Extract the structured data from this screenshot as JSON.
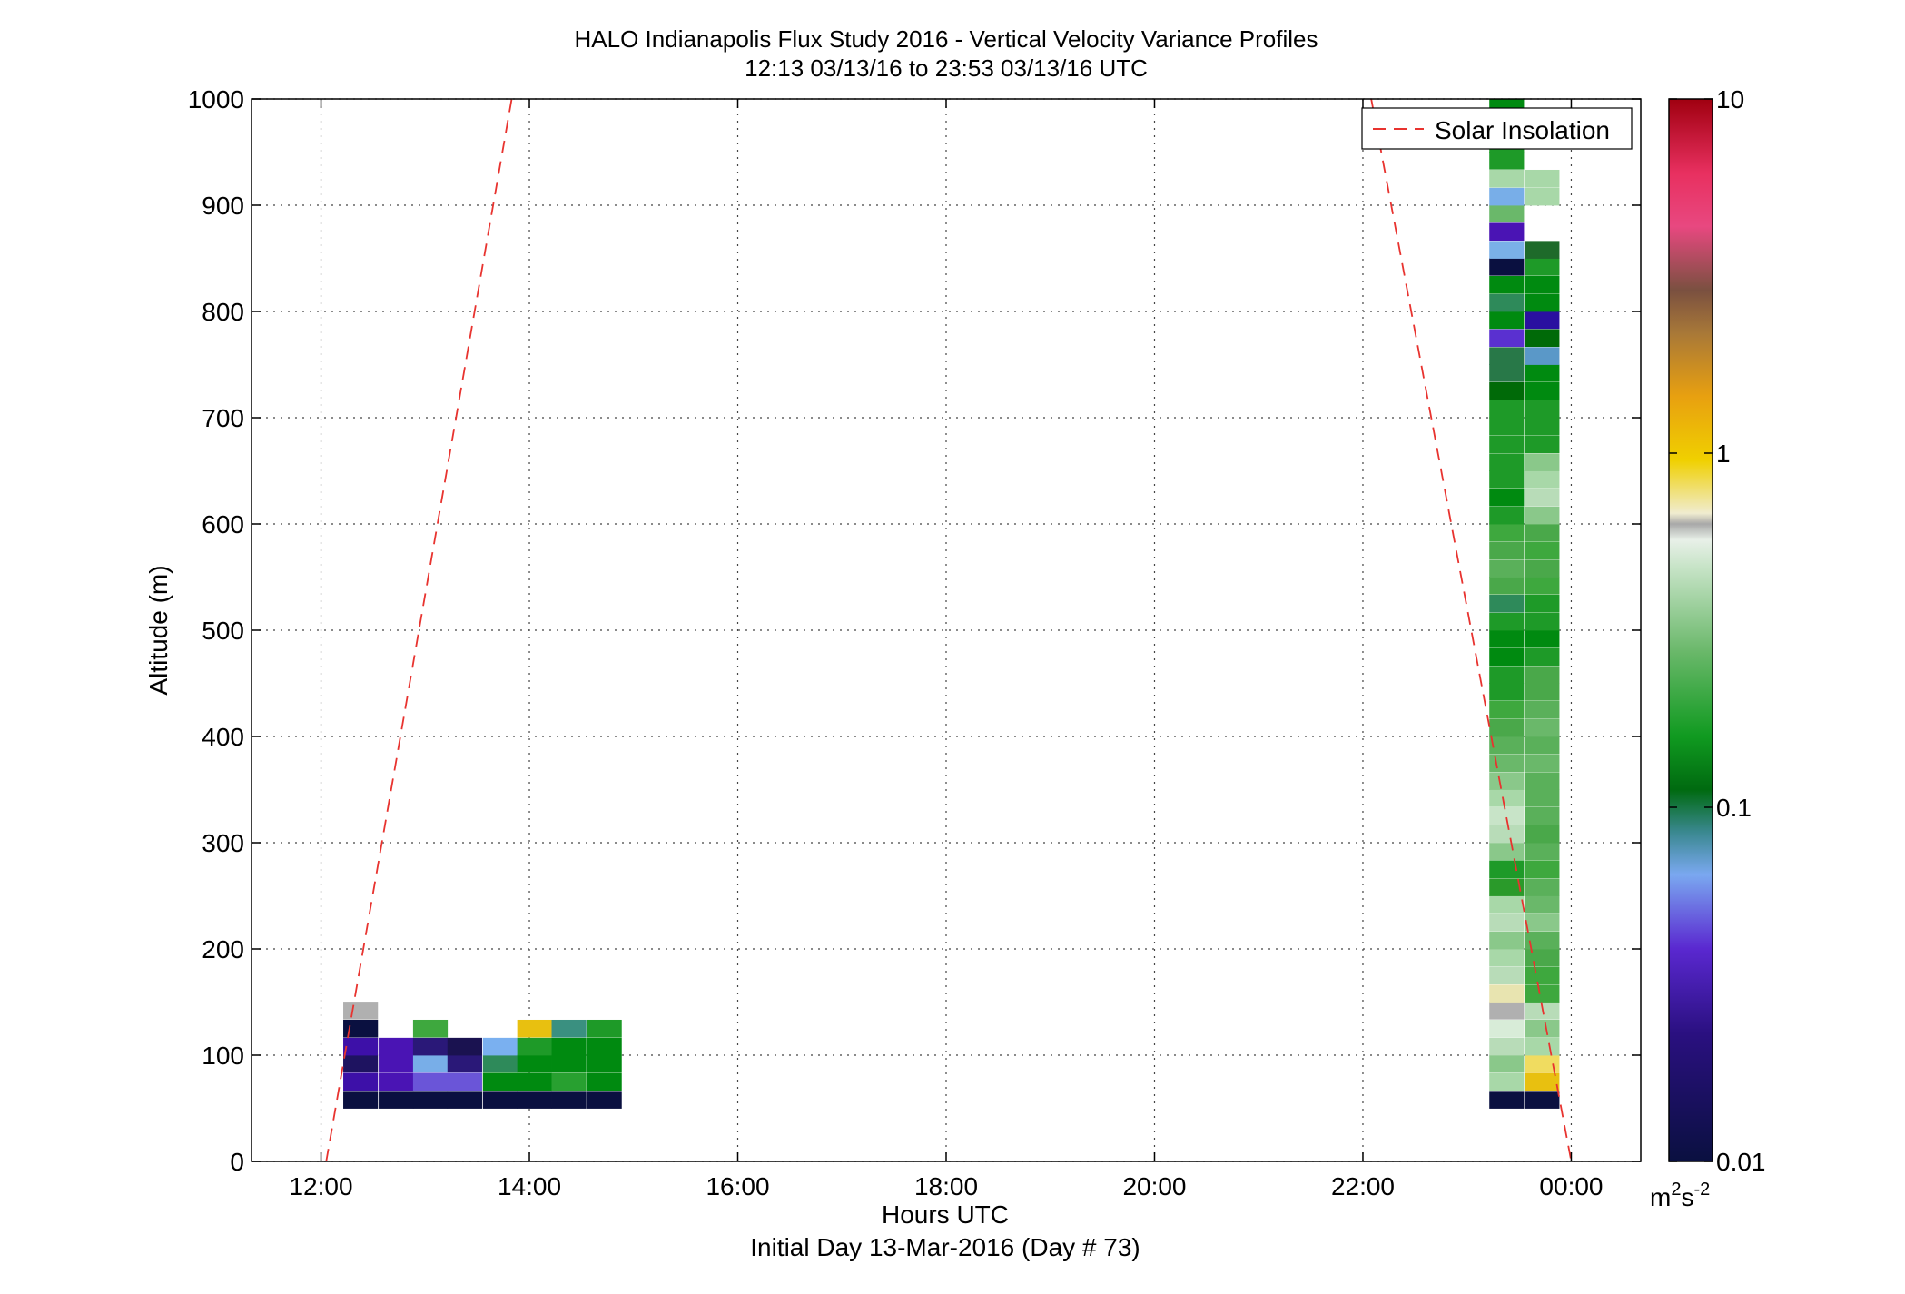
{
  "header": {
    "title": "HALO Indianapolis Flux Study 2016 - Vertical Velocity Variance Profiles",
    "subtitle": "12:13 03/13/16 to 23:53 03/13/16  UTC"
  },
  "colors": {
    "grid": "#444444",
    "insolation": "#e8332f",
    "axes": "#000000"
  },
  "chart_data": {
    "type": "heatmap",
    "xlabel": "Hours UTC",
    "xlabel2": "Initial Day 13-Mar-2016 (Day # 73)",
    "ylabel": "Altitude (m)",
    "xlim": [
      11.333,
      24.667
    ],
    "ylim": [
      0,
      1000
    ],
    "x_ticks": [
      12,
      14,
      16,
      18,
      20,
      22,
      24
    ],
    "x_tick_labels": [
      "12:00",
      "14:00",
      "16:00",
      "18:00",
      "20:00",
      "22:00",
      "00:00"
    ],
    "y_ticks": [
      0,
      100,
      200,
      300,
      400,
      500,
      600,
      700,
      800,
      900,
      1000
    ],
    "y_tick_labels": [
      "0",
      "100",
      "200",
      "300",
      "400",
      "500",
      "600",
      "700",
      "800",
      "900",
      "1000"
    ],
    "grid": true,
    "legend": {
      "placement": "top-right",
      "entries": [
        "Solar Insolation"
      ]
    },
    "colorbar": {
      "scale": "log",
      "range": [
        0.01,
        10
      ],
      "tick_values": [
        0.01,
        0.1,
        1,
        10
      ],
      "tick_labels": [
        "0.01",
        "0.1",
        "1",
        "10"
      ],
      "unit_base": "m",
      "unit_sup1": "2",
      "unit_mid": "s",
      "unit_sup2": "-2"
    },
    "solar_insolation": {
      "morning": {
        "x": [
          12.05,
          13.83
        ],
        "y": [
          0,
          1000
        ]
      },
      "evening": {
        "x": [
          22.08,
          24.0
        ],
        "y": [
          1000,
          0
        ]
      }
    },
    "cell_height_m": 16.7,
    "cell_width_h": 0.333,
    "series": [
      {
        "time": 12.38,
        "cells": [
          [
            58,
            "#0a1040"
          ],
          [
            75,
            "#3d10a8"
          ],
          [
            92,
            "#1e1360"
          ],
          [
            108,
            "#3d10a8"
          ],
          [
            125,
            "#0a1040"
          ],
          [
            142,
            "#b0b0b0"
          ]
        ]
      },
      {
        "time": 12.72,
        "cells": [
          [
            58,
            "#0a1040"
          ],
          [
            75,
            "#4a14b4"
          ],
          [
            92,
            "#4a14b4"
          ],
          [
            108,
            "#4a14b4"
          ]
        ]
      },
      {
        "time": 13.05,
        "cells": [
          [
            58,
            "#0a1040"
          ],
          [
            75,
            "#6a55d8"
          ],
          [
            92,
            "#78aee8"
          ],
          [
            108,
            "#2a1878"
          ],
          [
            125,
            "#3ea83e"
          ]
        ]
      },
      {
        "time": 13.38,
        "cells": [
          [
            58,
            "#0a1040"
          ],
          [
            75,
            "#6a55d8"
          ],
          [
            92,
            "#2a1878"
          ],
          [
            108,
            "#1a1250"
          ]
        ]
      },
      {
        "time": 13.72,
        "cells": [
          [
            58,
            "#0a1040"
          ],
          [
            75,
            "#008a10"
          ],
          [
            92,
            "#2e8a5a"
          ],
          [
            108,
            "#7ab0f0"
          ]
        ]
      },
      {
        "time": 14.05,
        "cells": [
          [
            58,
            "#0a1040"
          ],
          [
            75,
            "#008a10"
          ],
          [
            92,
            "#008a10"
          ],
          [
            108,
            "#1e9a28"
          ],
          [
            125,
            "#e8c010"
          ]
        ]
      },
      {
        "time": 14.38,
        "cells": [
          [
            58,
            "#0a1040"
          ],
          [
            75,
            "#28a030"
          ],
          [
            92,
            "#008a10"
          ],
          [
            108,
            "#008a10"
          ],
          [
            125,
            "#3a9080"
          ]
        ]
      },
      {
        "time": 14.72,
        "cells": [
          [
            58,
            "#0a1040"
          ],
          [
            75,
            "#008a10"
          ],
          [
            92,
            "#008a10"
          ],
          [
            108,
            "#008a10"
          ],
          [
            125,
            "#1e9a28"
          ]
        ]
      },
      {
        "time": 23.38,
        "cells": [
          [
            58,
            "#0a1040"
          ],
          [
            75,
            "#a8d8a8"
          ],
          [
            92,
            "#8ac88a"
          ],
          [
            108,
            "#b8dcb8"
          ],
          [
            125,
            "#d8ecd8"
          ],
          [
            142,
            "#b0b0b0"
          ],
          [
            158,
            "#e8e4b0"
          ],
          [
            175,
            "#b8dcb8"
          ],
          [
            192,
            "#a8d8a8"
          ],
          [
            208,
            "#8ac88a"
          ],
          [
            225,
            "#b8dcb8"
          ],
          [
            242,
            "#a8d8a8"
          ],
          [
            258,
            "#2a9a2a"
          ],
          [
            275,
            "#1e9a28"
          ],
          [
            292,
            "#8ac88a"
          ],
          [
            308,
            "#b8dcb8"
          ],
          [
            325,
            "#c8e4c8"
          ],
          [
            342,
            "#a8d8a8"
          ],
          [
            358,
            "#8ac88a"
          ],
          [
            375,
            "#6ab86a"
          ],
          [
            392,
            "#5ab05a"
          ],
          [
            408,
            "#4aa84a"
          ],
          [
            425,
            "#3ea83e"
          ],
          [
            442,
            "#1e9a28"
          ],
          [
            458,
            "#1e9a28"
          ],
          [
            475,
            "#008a10"
          ],
          [
            492,
            "#008a10"
          ],
          [
            508,
            "#1e9a28"
          ],
          [
            525,
            "#2e8a5a"
          ],
          [
            542,
            "#4aa84a"
          ],
          [
            558,
            "#5ab05a"
          ],
          [
            575,
            "#4aa84a"
          ],
          [
            592,
            "#3ea83e"
          ],
          [
            608,
            "#1e9a28"
          ],
          [
            625,
            "#008a10"
          ],
          [
            642,
            "#1e9a28"
          ],
          [
            658,
            "#1e9a28"
          ],
          [
            675,
            "#1e9a28"
          ],
          [
            692,
            "#1e9a28"
          ],
          [
            708,
            "#1e9a28"
          ],
          [
            725,
            "#006a08"
          ],
          [
            742,
            "#287848"
          ],
          [
            758,
            "#287848"
          ],
          [
            775,
            "#5a30d0"
          ],
          [
            792,
            "#008a10"
          ],
          [
            808,
            "#2e8a5a"
          ],
          [
            825,
            "#008a10"
          ],
          [
            842,
            "#0a1040"
          ],
          [
            858,
            "#7ab0e8"
          ],
          [
            875,
            "#4a14b4"
          ],
          [
            892,
            "#6ab86a"
          ],
          [
            908,
            "#78aee8"
          ],
          [
            925,
            "#a8d8a8"
          ],
          [
            942,
            "#1e9a28"
          ],
          [
            958,
            "#1e9a28"
          ],
          [
            975,
            "#1e9a28"
          ],
          [
            992,
            "#008a10"
          ]
        ]
      },
      {
        "time": 23.72,
        "cells": [
          [
            58,
            "#0a1040"
          ],
          [
            75,
            "#e8c010"
          ],
          [
            92,
            "#f0dc60"
          ],
          [
            108,
            "#a8d8a8"
          ],
          [
            125,
            "#8ac88a"
          ],
          [
            142,
            "#b8dcb8"
          ],
          [
            158,
            "#3ea83e"
          ],
          [
            175,
            "#3ea83e"
          ],
          [
            192,
            "#4aa84a"
          ],
          [
            208,
            "#5ab05a"
          ],
          [
            225,
            "#8ac88a"
          ],
          [
            242,
            "#6ab86a"
          ],
          [
            258,
            "#5ab05a"
          ],
          [
            275,
            "#3ea83e"
          ],
          [
            292,
            "#5ab05a"
          ],
          [
            308,
            "#4aa84a"
          ],
          [
            325,
            "#5ab05a"
          ],
          [
            342,
            "#5ab05a"
          ],
          [
            358,
            "#5ab05a"
          ],
          [
            375,
            "#6ab86a"
          ],
          [
            392,
            "#5ab05a"
          ],
          [
            408,
            "#6ab86a"
          ],
          [
            425,
            "#5ab05a"
          ],
          [
            442,
            "#4aa84a"
          ],
          [
            458,
            "#4aa84a"
          ],
          [
            475,
            "#1e9a28"
          ],
          [
            492,
            "#008a10"
          ],
          [
            508,
            "#1e9a28"
          ],
          [
            525,
            "#1e9a28"
          ],
          [
            542,
            "#3ea83e"
          ],
          [
            558,
            "#4aa84a"
          ],
          [
            575,
            "#3ea83e"
          ],
          [
            592,
            "#4aa84a"
          ],
          [
            608,
            "#8ac88a"
          ],
          [
            625,
            "#b8dcb8"
          ],
          [
            642,
            "#a8d8a8"
          ],
          [
            658,
            "#8ac88a"
          ],
          [
            675,
            "#1e9a28"
          ],
          [
            692,
            "#1e9a28"
          ],
          [
            708,
            "#1e9a28"
          ],
          [
            725,
            "#008a10"
          ],
          [
            742,
            "#008a10"
          ],
          [
            758,
            "#5a98c8"
          ],
          [
            775,
            "#006a08"
          ],
          [
            792,
            "#2a10a0"
          ],
          [
            808,
            "#008a10"
          ],
          [
            825,
            "#008a10"
          ],
          [
            842,
            "#1e9a28"
          ],
          [
            858,
            "#1e6a2a"
          ],
          [
            908,
            "#a8d8a8"
          ],
          [
            925,
            "#a8d8a8"
          ]
        ]
      }
    ]
  }
}
